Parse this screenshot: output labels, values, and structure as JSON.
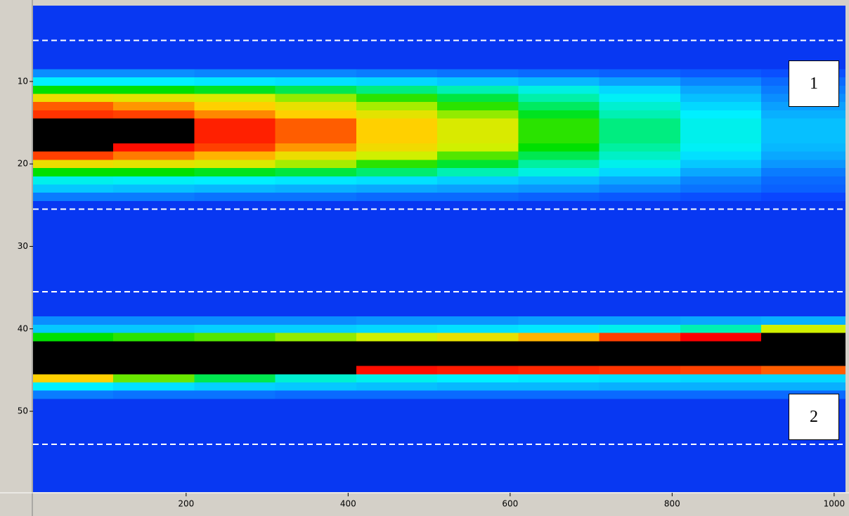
{
  "chart_data": {
    "type": "heatmap",
    "xlim": [
      11,
      1014
    ],
    "ylim": [
      0.8,
      59.8
    ],
    "y_inverted": true,
    "xticks": [
      200,
      400,
      600,
      800,
      1000
    ],
    "yticks": [
      10,
      20,
      30,
      40,
      50
    ],
    "x_edges": [
      11,
      110,
      210,
      310,
      410,
      510,
      610,
      710,
      810,
      910,
      1014
    ],
    "y_edges": [
      0.8,
      8.5,
      9.5,
      10.5,
      11.5,
      12.5,
      13.5,
      14.5,
      15.5,
      16.5,
      17.5,
      18.5,
      19.5,
      20.5,
      21.5,
      22.5,
      23.5,
      24.5,
      38.5,
      39.5,
      40.5,
      41.5,
      42.5,
      43.5,
      44.5,
      45.5,
      46.5,
      47.5,
      48.5,
      59.8
    ],
    "clim": [
      0,
      100
    ],
    "colormap": [
      "#0000c0",
      "#0a46ff",
      "#0aa0ff",
      "#00f0ff",
      "#00f0a0",
      "#00e000",
      "#d0f000",
      "#ffd000",
      "#ff4000",
      "#ff0000",
      "#e80000"
    ],
    "over_color": "#000000",
    "values": [
      [
        8,
        8,
        8,
        8,
        8,
        8,
        8,
        8,
        8,
        8
      ],
      [
        18,
        18,
        17,
        17,
        16,
        15,
        14,
        13,
        12,
        11
      ],
      [
        30,
        30,
        29,
        28,
        27,
        25,
        23,
        20,
        17,
        14
      ],
      [
        50,
        50,
        48,
        45,
        42,
        38,
        33,
        27,
        21,
        16
      ],
      [
        66,
        64,
        62,
        57,
        52,
        46,
        39,
        31,
        24,
        18
      ],
      [
        78,
        74,
        70,
        65,
        58,
        52,
        44,
        35,
        27,
        20
      ],
      [
        82,
        80,
        75,
        70,
        64,
        57,
        48,
        38,
        30,
        22
      ],
      [
        100,
        100,
        85,
        78,
        70,
        62,
        52,
        42,
        32,
        24
      ],
      [
        100,
        100,
        85,
        78,
        70,
        62,
        52,
        42,
        32,
        24
      ],
      [
        100,
        100,
        85,
        78,
        70,
        62,
        52,
        42,
        32,
        24
      ],
      [
        100,
        88,
        80,
        74,
        67,
        60,
        50,
        40,
        31,
        23
      ],
      [
        80,
        76,
        72,
        66,
        60,
        54,
        45,
        36,
        28,
        21
      ],
      [
        66,
        64,
        62,
        58,
        52,
        47,
        40,
        32,
        25,
        19
      ],
      [
        50,
        50,
        48,
        46,
        43,
        38,
        33,
        27,
        21,
        16
      ],
      [
        32,
        31,
        30,
        29,
        28,
        26,
        24,
        21,
        17,
        14
      ],
      [
        25,
        24,
        23,
        22,
        21,
        20,
        19,
        17,
        15,
        13
      ],
      [
        16,
        16,
        15,
        15,
        14,
        14,
        13,
        12,
        11,
        10
      ],
      [
        8,
        8,
        8,
        8,
        8,
        8,
        8,
        8,
        8,
        8
      ],
      [
        18,
        18,
        18,
        18,
        19,
        19,
        20,
        20,
        21,
        22
      ],
      [
        25,
        25,
        26,
        26,
        27,
        28,
        29,
        32,
        38,
        60
      ],
      [
        50,
        52,
        54,
        57,
        60,
        65,
        72,
        80,
        92,
        100
      ],
      [
        100,
        100,
        100,
        100,
        100,
        100,
        100,
        100,
        100,
        100
      ],
      [
        100,
        100,
        100,
        100,
        100,
        100,
        100,
        100,
        100,
        100
      ],
      [
        100,
        100,
        100,
        100,
        100,
        100,
        100,
        100,
        100,
        100
      ],
      [
        100,
        100,
        100,
        100,
        88,
        86,
        84,
        82,
        80,
        78
      ],
      [
        70,
        55,
        45,
        35,
        32,
        30,
        29,
        28,
        27,
        27
      ],
      [
        30,
        28,
        26,
        25,
        24,
        23,
        23,
        22,
        22,
        22
      ],
      [
        16,
        15,
        15,
        14,
        14,
        14,
        14,
        14,
        14,
        14
      ],
      [
        8,
        8,
        8,
        8,
        8,
        8,
        8,
        8,
        8,
        8
      ]
    ],
    "reference_lines": [
      5,
      25.5,
      35.5,
      54
    ],
    "reference_color": "#ffffff",
    "annotations": [
      "1",
      "2"
    ]
  }
}
